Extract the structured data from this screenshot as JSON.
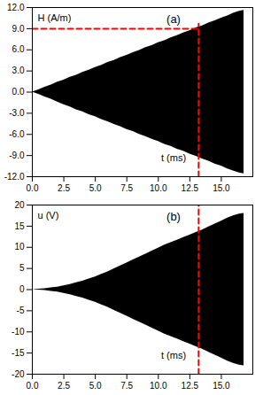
{
  "chart_data": [
    {
      "type": "area",
      "title": "(a)",
      "xlabel": "t (ms)",
      "ylabel": "H (A/m)",
      "color": "#000000",
      "x": [
        0,
        0.5,
        1,
        1.5,
        2,
        2.5,
        3,
        3.5,
        4,
        4.5,
        5,
        5.5,
        6,
        6.5,
        7,
        7.5,
        8,
        8.5,
        9,
        9.5,
        10,
        10.5,
        11,
        11.5,
        12,
        12.5,
        13,
        13.5,
        14,
        14.5,
        15,
        15.5,
        16,
        16.5,
        16.8
      ],
      "upper": [
        0,
        0.3,
        0.7,
        1.0,
        1.4,
        1.7,
        2.1,
        2.4,
        2.8,
        3.1,
        3.5,
        3.8,
        4.2,
        4.5,
        4.9,
        5.2,
        5.6,
        5.9,
        6.3,
        6.6,
        7.0,
        7.3,
        7.7,
        8.0,
        8.4,
        8.7,
        9.1,
        9.4,
        9.8,
        10.1,
        10.5,
        10.8,
        11.2,
        11.5,
        11.6
      ],
      "lower": [
        0,
        -0.3,
        -0.7,
        -1.0,
        -1.4,
        -1.8,
        -2.1,
        -2.5,
        -2.8,
        -3.2,
        -3.5,
        -3.9,
        -4.2,
        -4.6,
        -4.9,
        -5.3,
        -5.6,
        -6.0,
        -6.3,
        -6.7,
        -7.0,
        -7.4,
        -7.7,
        -8.1,
        -8.4,
        -8.8,
        -9.1,
        -9.5,
        -9.8,
        -10.2,
        -10.5,
        -10.9,
        -11.2,
        -11.5,
        -11.6
      ],
      "xlim": [
        0,
        17.5
      ],
      "xticks": [
        {
          "value": 0,
          "label": "0.0"
        },
        2.5,
        {
          "value": 5,
          "label": "5.0"
        },
        7.5,
        {
          "value": 10,
          "label": "10.0"
        },
        12.5,
        {
          "value": 15,
          "label": "15.0"
        }
      ],
      "ylim": [
        -12,
        12
      ],
      "yticks": [
        {
          "value": -12,
          "label": "-12.0"
        },
        {
          "value": -9,
          "label": "-9.0"
        },
        {
          "value": -6,
          "label": "-6.0"
        },
        {
          "value": -3,
          "label": "-3.0"
        },
        {
          "value": 0,
          "label": "0.0"
        },
        {
          "value": 3,
          "label": "3.0"
        },
        {
          "value": 6,
          "label": "6.0"
        },
        {
          "value": 9,
          "label": "9.0"
        },
        {
          "value": 12,
          "label": "12.0"
        }
      ],
      "reference_lines": [
        {
          "y": 9,
          "x": [
            0,
            13.2
          ],
          "color": "#ff0000",
          "line_style": "dashed"
        },
        {
          "x": 13.2,
          "y": [
            -12,
            9.7
          ],
          "color": "#ff0000",
          "line_style": "dashed"
        }
      ]
    },
    {
      "type": "area",
      "title": "(b)",
      "xlabel": "t (ms)",
      "ylabel": "u (V)",
      "color": "#000000",
      "x": [
        0,
        0.5,
        1,
        1.5,
        2,
        2.5,
        3,
        3.5,
        4,
        4.5,
        5,
        5.5,
        6,
        6.5,
        7,
        7.5,
        8,
        8.5,
        9,
        9.5,
        10,
        10.5,
        11,
        11.5,
        12,
        12.5,
        13,
        13.5,
        14,
        14.5,
        15,
        15.5,
        16,
        16.5,
        16.8
      ],
      "upper": [
        0,
        0.1,
        0.2,
        0.4,
        0.6,
        0.9,
        1.2,
        1.6,
        2.0,
        2.5,
        3.0,
        3.6,
        4.2,
        4.9,
        5.6,
        6.3,
        7.0,
        7.7,
        8.4,
        9.1,
        9.8,
        10.5,
        11.1,
        11.7,
        12.3,
        12.9,
        13.5,
        14.1,
        14.8,
        15.5,
        16.2,
        16.9,
        17.5,
        17.9,
        18.0
      ],
      "lower": [
        0,
        -0.1,
        -0.2,
        -0.4,
        -0.6,
        -0.9,
        -1.2,
        -1.6,
        -2.0,
        -2.5,
        -3.0,
        -3.6,
        -4.2,
        -4.9,
        -5.6,
        -6.3,
        -7.0,
        -7.7,
        -8.4,
        -9.1,
        -9.8,
        -10.5,
        -11.1,
        -11.7,
        -12.3,
        -12.9,
        -13.5,
        -14.1,
        -14.8,
        -15.5,
        -16.2,
        -16.9,
        -17.5,
        -17.9,
        -18.0
      ],
      "xlim": [
        0,
        17.5
      ],
      "xticks": [
        {
          "value": 0,
          "label": "0.0"
        },
        2.5,
        {
          "value": 5,
          "label": "5.0"
        },
        7.5,
        {
          "value": 10,
          "label": "10.0"
        },
        12.5,
        {
          "value": 15,
          "label": "15.0"
        }
      ],
      "ylim": [
        -20,
        20
      ],
      "yticks": [
        -20,
        -15,
        -10,
        -5,
        0,
        5,
        10,
        15,
        20
      ],
      "reference_lines": [
        {
          "x": 13.2,
          "y": [
            -20,
            20
          ],
          "color": "#ff0000",
          "line_style": "dashed"
        }
      ]
    }
  ]
}
